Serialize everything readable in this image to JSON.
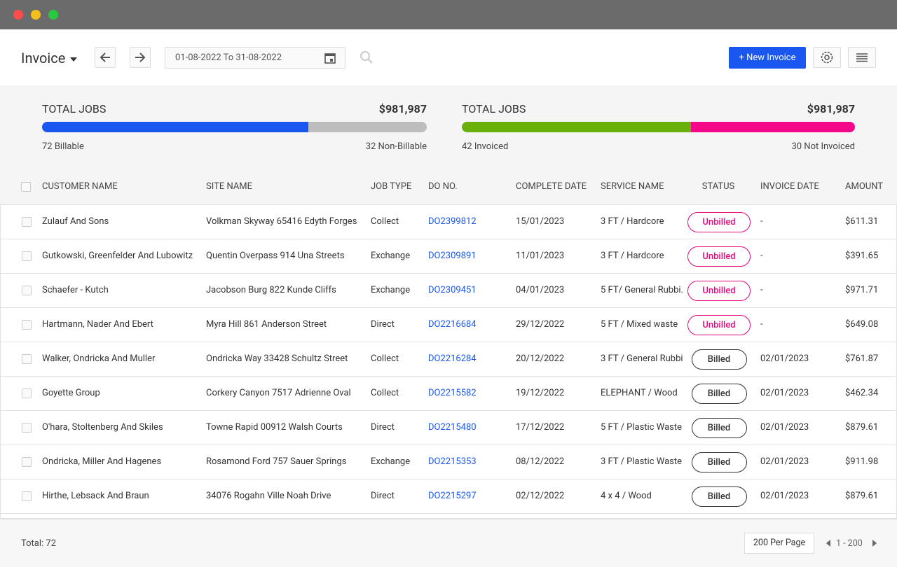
{
  "header": {
    "title": "Invoice",
    "date_range": "01-08-2022 To 31-08-2022",
    "new_button": "+ New Invoice"
  },
  "summary": [
    {
      "title": "TOTAL JOBS",
      "amount": "$981,987",
      "segments": [
        {
          "value": 72,
          "label": "72 Billable",
          "color": "#1a56f0"
        },
        {
          "value": 32,
          "label": "32 Non-Billable",
          "color": "#bdbdbd"
        }
      ]
    },
    {
      "title": "TOTAL JOBS",
      "amount": "$981,987",
      "segments": [
        {
          "value": 42,
          "label": "42 Invoiced",
          "color": "#6ab00b"
        },
        {
          "value": 30,
          "label": "30 Not Invoiced",
          "color": "#f5078a"
        }
      ]
    }
  ],
  "table": {
    "columns": [
      "CUSTOMER NAME",
      "SITE NAME",
      "JOB TYPE",
      "DO NO.",
      "COMPLETE DATE",
      "SERVICE NAME",
      "STATUS",
      "INVOICE DATE",
      "AMOUNT"
    ],
    "rows": [
      [
        "Zulauf And Sons",
        "Volkman Skyway 65416 Edyth Forges",
        "Collect",
        "DO2399812",
        "15/01/2023",
        "3 FT / Hardcore",
        {
          "text": "Unbilled",
          "color": "#e5087e"
        },
        "-",
        "$611.31"
      ],
      [
        "Gutkowski, Greenfelder And Lubowitz",
        "Quentin Overpass 914 Una Streets",
        "Exchange",
        "DO2309891",
        "11/01/2023",
        "3 FT / Hardcore",
        {
          "text": "Unbilled",
          "color": "#e5087e"
        },
        "-",
        "$391.65"
      ],
      [
        "Schaefer - Kutch",
        "Jacobson Burg 822 Kunde Cliffs",
        "Exchange",
        "DO2309451",
        "04/01/2023",
        "5 FT/ General Rubbi.",
        {
          "text": "Unbilled",
          "color": "#e5087e"
        },
        "-",
        "$971.71"
      ],
      [
        "Hartmann, Nader And Ebert",
        "Myra Hill 861 Anderson Street",
        "Direct",
        "DO2216684",
        "29/12/2022",
        "5 FT / Mixed waste",
        {
          "text": "Unbilled",
          "color": "#e5087e"
        },
        "-",
        "$649.08"
      ],
      [
        "Walker, Ondricka And Muller",
        "Ondricka Way 33428 Schultz Street",
        "Collect",
        "DO2216284",
        "20/12/2022",
        "3 FT / General Rubbi",
        {
          "text": "Billed",
          "color": "#333333"
        },
        "02/01/2023",
        "$761.87"
      ],
      [
        "Goyette Group",
        "Corkery Canyon 7517 Adrienne Oval",
        "Collect",
        "DO2215582",
        "19/12/2022",
        "ELEPHANT / Wood",
        {
          "text": "Billed",
          "color": "#333333"
        },
        "02/01/2023",
        "$462.34"
      ],
      [
        "O'hara, Stoltenberg And Skiles",
        "Towne Rapid 00912 Walsh Courts",
        "Direct",
        "DO2215480",
        "17/12/2022",
        "5 FT / Plastic Waste",
        {
          "text": "Billed",
          "color": "#333333"
        },
        "02/01/2023",
        "$879.61"
      ],
      [
        "Ondricka, Miller And Hagenes",
        "Rosamond Ford 757 Sauer Springs",
        "Exchange",
        "DO2215353",
        "08/12/2022",
        "3 FT / Plastic Waste",
        {
          "text": "Billed",
          "color": "#333333"
        },
        "02/01/2023",
        "$911.98"
      ],
      [
        "Hirthe, Lebsack And Braun",
        "34076 Rogahn Ville Noah Drive",
        "Direct",
        "DO2215297",
        "02/12/2022",
        "4 x 4 / Wood",
        {
          "text": "Billed",
          "color": "#333333"
        },
        "02/01/2023",
        "$879.61"
      ]
    ]
  },
  "footer": {
    "total": "Total: 72",
    "per_page": "200 Per Page",
    "range": "1 - 200"
  }
}
